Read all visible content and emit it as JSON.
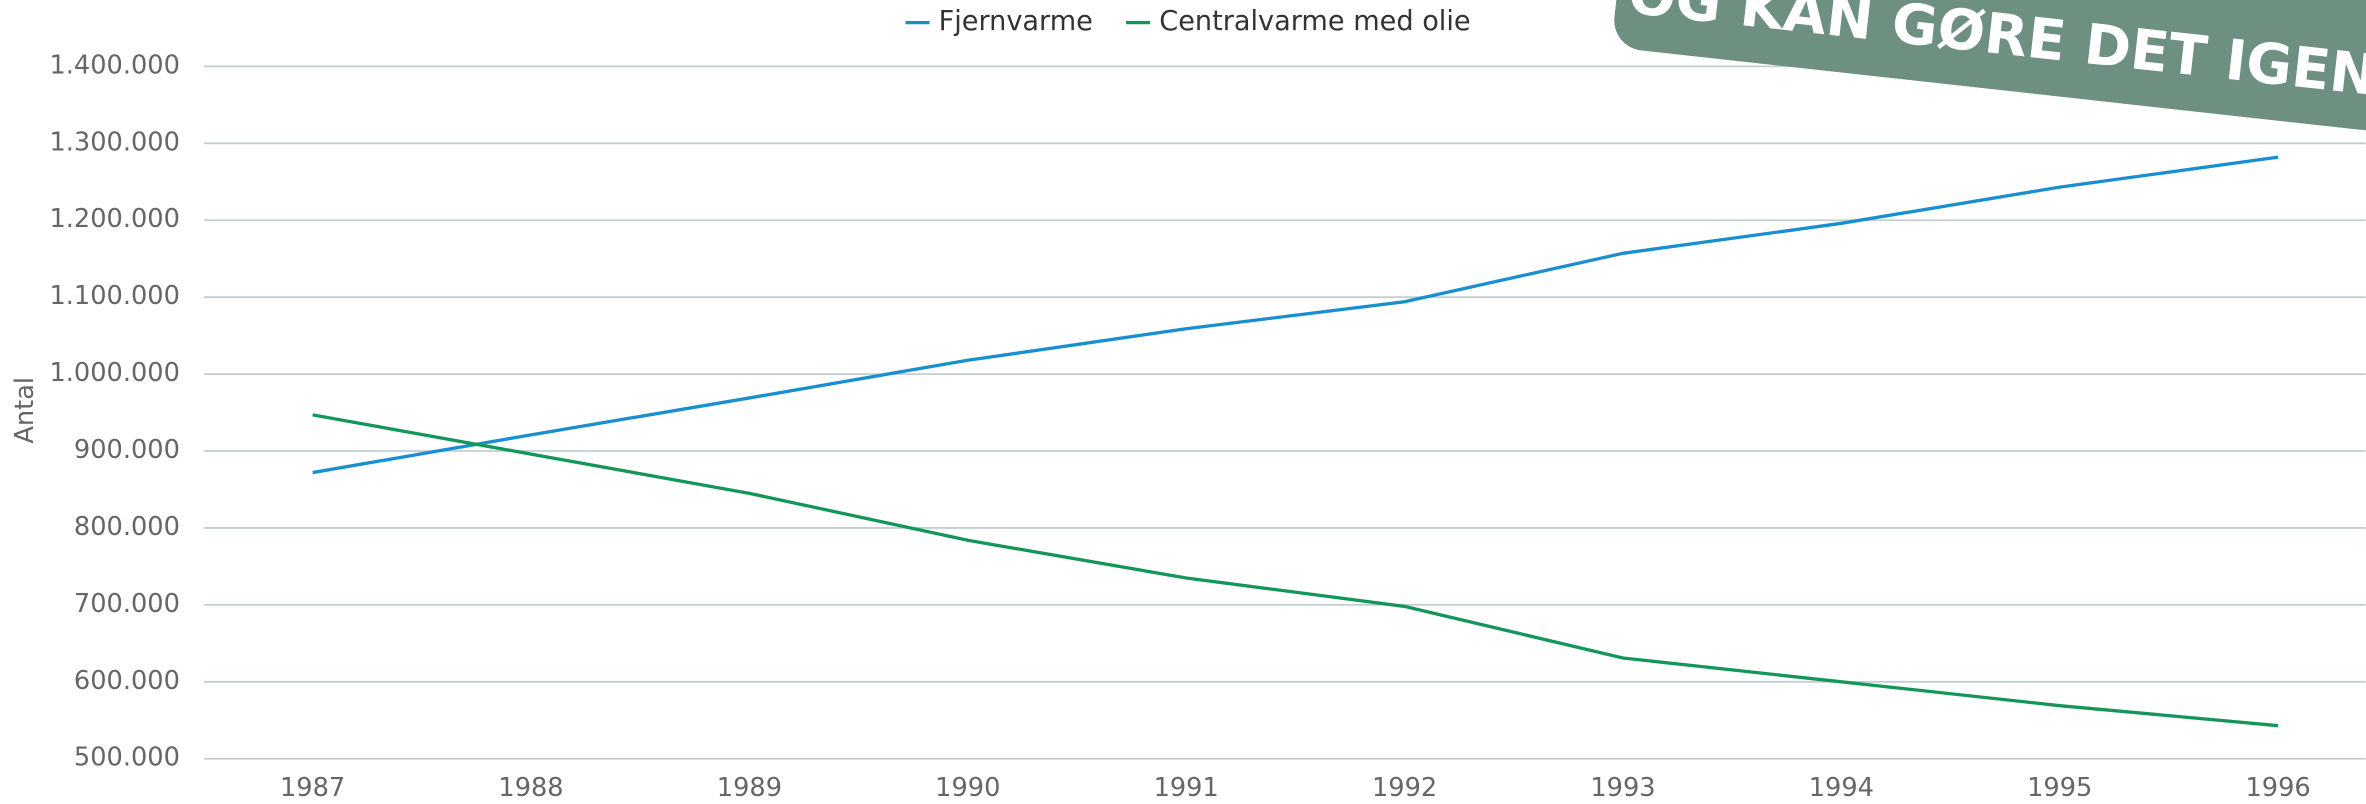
{
  "chart_data": {
    "type": "line",
    "y_label": "Antal",
    "annotation": "OG KAN GØRE DET IGEN",
    "categories": [
      "1987",
      "1988",
      "1989",
      "1990",
      "1991",
      "1992",
      "1993",
      "1994",
      "1995",
      "1996"
    ],
    "series": [
      {
        "name": "Fjernvarme",
        "color": "#1a8fcf",
        "values": [
          872000,
          921000,
          969000,
          1018000,
          1059000,
          1094000,
          1157000,
          1196000,
          1243000,
          1282000
        ]
      },
      {
        "name": "Centralvarme med olie",
        "color": "#14965a",
        "values": [
          947000,
          896000,
          845000,
          784000,
          735000,
          698000,
          631000,
          600000,
          569000,
          543000
        ]
      }
    ],
    "ylim": [
      500000,
      1400000
    ],
    "yticks": [
      {
        "value": 500000,
        "label": "500.000"
      },
      {
        "value": 600000,
        "label": "600.000"
      },
      {
        "value": 700000,
        "label": "700.000"
      },
      {
        "value": 800000,
        "label": "800.000"
      },
      {
        "value": 900000,
        "label": "900.000"
      },
      {
        "value": 1000000,
        "label": "1.000.000"
      },
      {
        "value": 1100000,
        "label": "1.100.000"
      },
      {
        "value": 1200000,
        "label": "1.200.000"
      },
      {
        "value": 1300000,
        "label": "1.300.000"
      },
      {
        "value": 1400000,
        "label": "1.400.000"
      }
    ],
    "grid": true,
    "legend": "top"
  }
}
